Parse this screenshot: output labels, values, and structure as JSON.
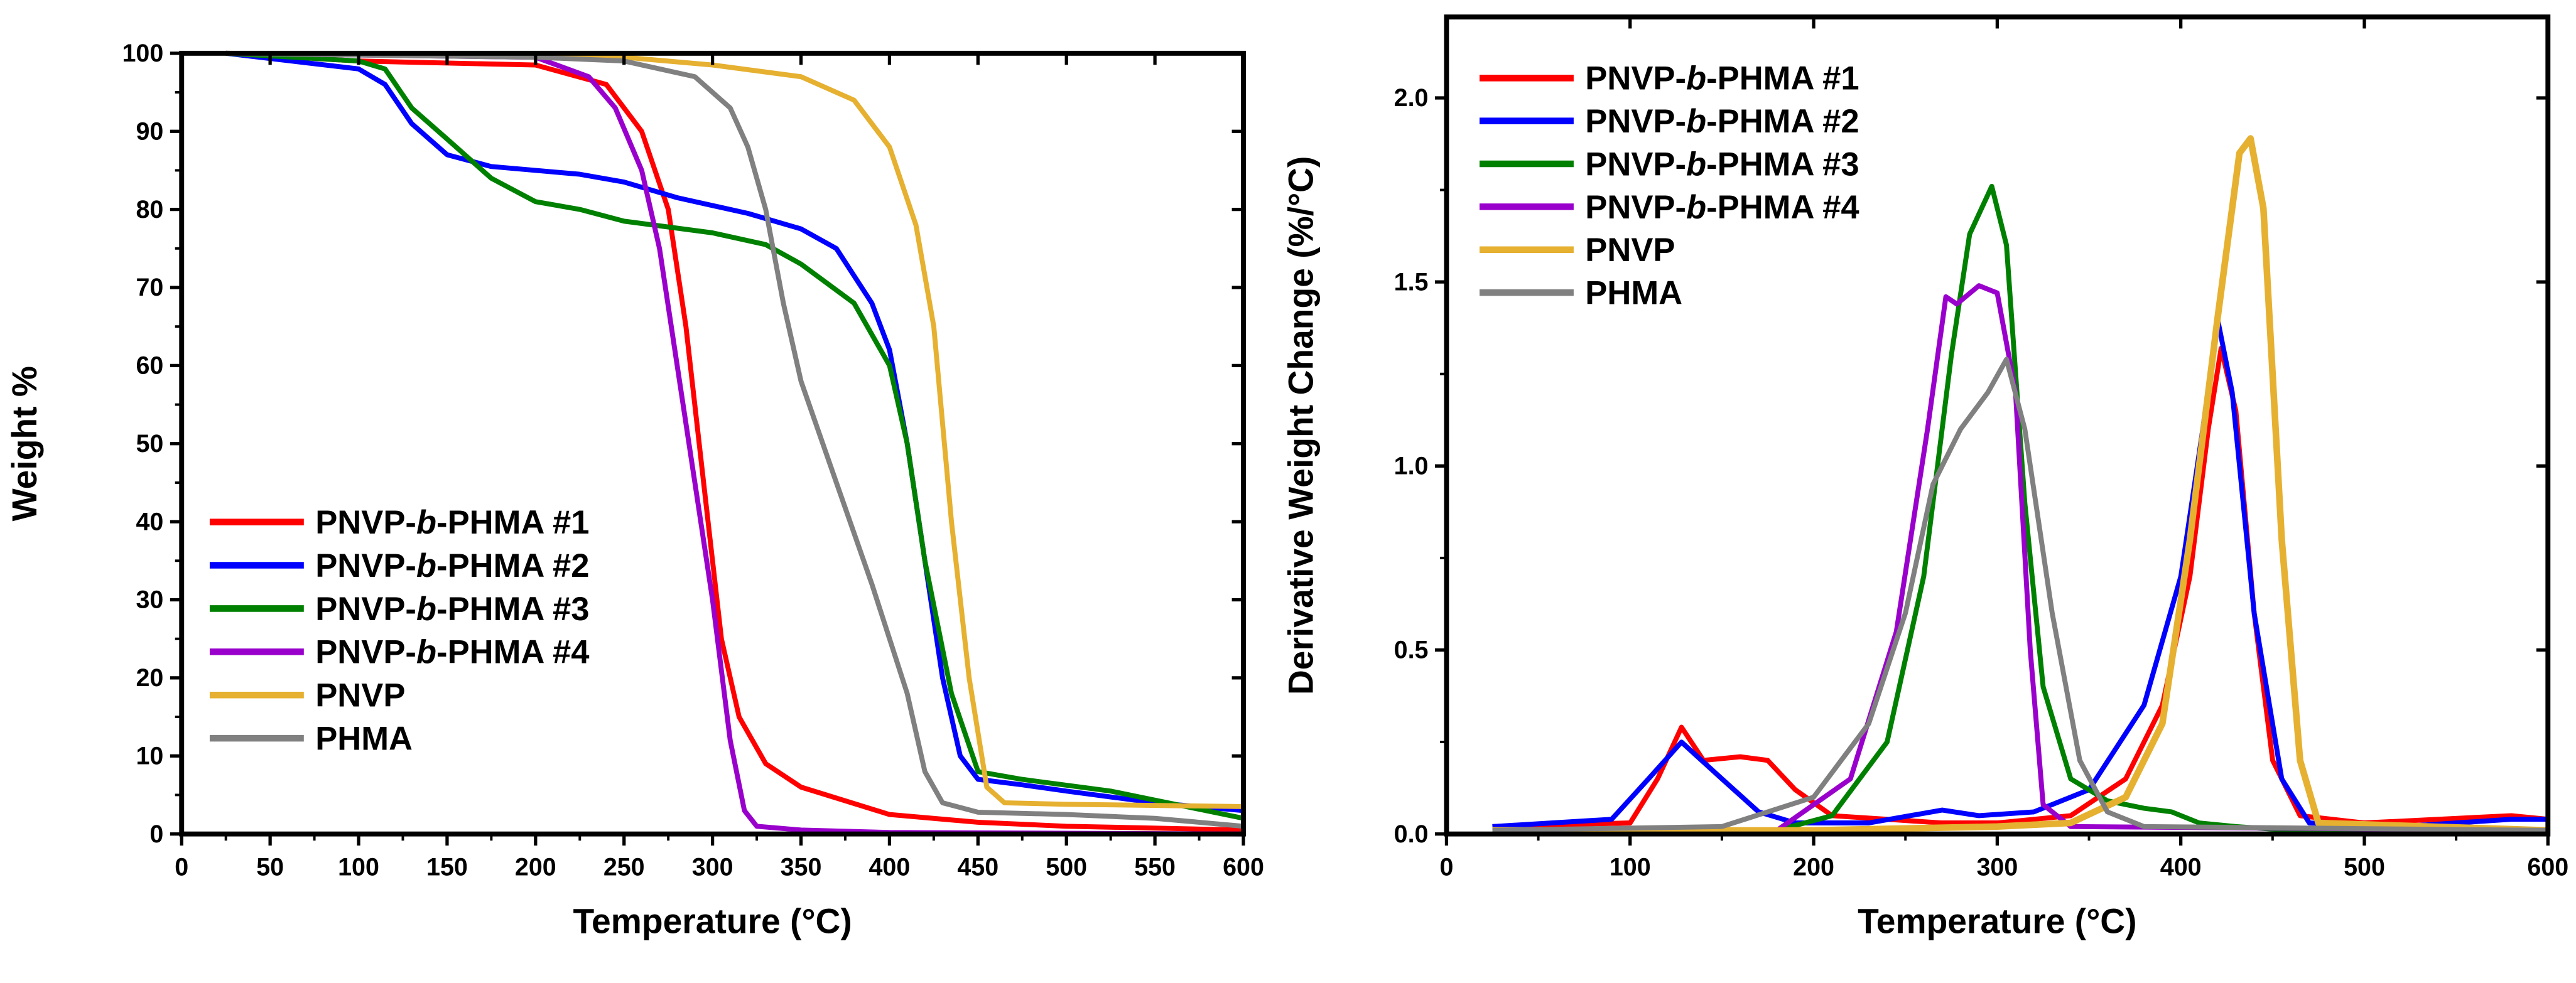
{
  "chart_data": [
    {
      "type": "line",
      "xlabel": "Temperature (°C)",
      "ylabel": "Weight %",
      "xlim": [
        0,
        600
      ],
      "ylim": [
        0,
        100
      ],
      "xticks": [
        0,
        50,
        100,
        150,
        200,
        250,
        300,
        350,
        400,
        450,
        500,
        550,
        600
      ],
      "yticks": [
        0,
        10,
        20,
        30,
        40,
        50,
        60,
        70,
        80,
        90,
        100
      ],
      "grid": false,
      "legend_position": "bottom-left",
      "series": [
        {
          "name": "PNVP-b-PHMA #1",
          "color": "#ff0000",
          "x": [
            25,
            100,
            200,
            240,
            260,
            275,
            285,
            295,
            305,
            315,
            330,
            350,
            400,
            450,
            500,
            600
          ],
          "y": [
            100,
            99,
            98.5,
            96,
            90,
            80,
            65,
            45,
            25,
            15,
            9,
            6,
            2.5,
            1.5,
            1,
            0.5
          ]
        },
        {
          "name": "PNVP-b-PHMA #2",
          "color": "#0000ff",
          "x": [
            25,
            100,
            115,
            130,
            150,
            175,
            225,
            250,
            280,
            320,
            350,
            370,
            390,
            400,
            410,
            420,
            430,
            440,
            450,
            475,
            500,
            550,
            600
          ],
          "y": [
            100,
            98,
            96,
            91,
            87,
            85.5,
            84.5,
            83.5,
            81.5,
            79.5,
            77.5,
            75,
            68,
            62,
            50,
            35,
            20,
            10,
            7,
            6.3,
            5.5,
            4,
            3
          ]
        },
        {
          "name": "PNVP-b-PHMA #3",
          "color": "#008000",
          "x": [
            25,
            100,
            115,
            130,
            150,
            175,
            200,
            225,
            250,
            300,
            330,
            350,
            380,
            400,
            410,
            420,
            435,
            450,
            475,
            525,
            600
          ],
          "y": [
            100,
            99,
            98,
            93,
            89,
            84,
            81,
            80,
            78.5,
            77,
            75.5,
            73,
            68,
            60,
            50,
            35,
            18,
            8,
            7,
            5.5,
            2
          ]
        },
        {
          "name": "PNVP-b-PHMA #4",
          "color": "#9900cc",
          "x": [
            25,
            200,
            230,
            245,
            260,
            270,
            280,
            290,
            300,
            310,
            318,
            325,
            350,
            400,
            600
          ],
          "y": [
            100,
            99.5,
            97,
            93,
            85,
            75,
            60,
            45,
            30,
            12,
            3,
            1,
            0.5,
            0.2,
            0
          ]
        },
        {
          "name": "PNVP",
          "color": "#e6b030",
          "x": [
            25,
            250,
            300,
            350,
            380,
            400,
            415,
            425,
            435,
            445,
            455,
            465,
            500,
            600
          ],
          "y": [
            100,
            99.5,
            98.5,
            97,
            94,
            88,
            78,
            65,
            40,
            20,
            6,
            4,
            3.8,
            3.5
          ]
        },
        {
          "name": "PHMA",
          "color": "#808080",
          "x": [
            25,
            200,
            250,
            290,
            310,
            320,
            330,
            340,
            350,
            370,
            390,
            410,
            420,
            430,
            450,
            500,
            550,
            600
          ],
          "y": [
            100,
            99.5,
            99,
            97,
            93,
            88,
            80,
            68,
            58,
            45,
            32,
            18,
            8,
            4,
            2.8,
            2.5,
            2,
            1
          ]
        }
      ]
    },
    {
      "type": "line",
      "xlabel": "Temperature (°C)",
      "ylabel": "Derivative Weight Change (%/°C)",
      "xlim": [
        0,
        600
      ],
      "ylim": [
        0,
        2.22
      ],
      "xticks": [
        0,
        100,
        200,
        300,
        400,
        500,
        600
      ],
      "yticks": [
        "0.0",
        "0.5",
        "1.0",
        "1.5",
        "2.0"
      ],
      "grid": false,
      "legend_position": "top-left",
      "series": [
        {
          "name": "PNVP-b-PHMA #1",
          "color": "#ff0000",
          "x": [
            25,
            100,
            115,
            128,
            140,
            160,
            175,
            190,
            210,
            240,
            270,
            300,
            340,
            370,
            390,
            405,
            415,
            422,
            430,
            440,
            450,
            465,
            500,
            580,
            600
          ],
          "y": [
            0.02,
            0.03,
            0.15,
            0.29,
            0.2,
            0.21,
            0.2,
            0.12,
            0.05,
            0.04,
            0.03,
            0.03,
            0.05,
            0.15,
            0.35,
            0.7,
            1.1,
            1.32,
            1.15,
            0.6,
            0.2,
            0.05,
            0.03,
            0.05,
            0.04
          ]
        },
        {
          "name": "PNVP-b-PHMA #2",
          "color": "#0000ff",
          "x": [
            25,
            90,
            110,
            128,
            150,
            170,
            190,
            230,
            270,
            290,
            320,
            350,
            380,
            400,
            412,
            420,
            428,
            440,
            455,
            470,
            520,
            580,
            600
          ],
          "y": [
            0.02,
            0.04,
            0.15,
            0.25,
            0.15,
            0.06,
            0.03,
            0.03,
            0.065,
            0.05,
            0.06,
            0.12,
            0.35,
            0.7,
            1.1,
            1.4,
            1.2,
            0.6,
            0.15,
            0.03,
            0.02,
            0.04,
            0.04
          ]
        },
        {
          "name": "PNVP-b-PHMA #3",
          "color": "#008000",
          "x": [
            25,
            180,
            210,
            240,
            260,
            275,
            285,
            297,
            305,
            315,
            325,
            340,
            360,
            380,
            395,
            410,
            430,
            460,
            600
          ],
          "y": [
            0.01,
            0.01,
            0.05,
            0.25,
            0.7,
            1.3,
            1.63,
            1.76,
            1.6,
            0.9,
            0.4,
            0.15,
            0.09,
            0.07,
            0.06,
            0.03,
            0.02,
            0.01,
            0.01
          ]
        },
        {
          "name": "PNVP-b-PHMA #4",
          "color": "#9900cc",
          "x": [
            25,
            180,
            220,
            245,
            262,
            272,
            278,
            290,
            300,
            310,
            318,
            325,
            340,
            600
          ],
          "y": [
            0.01,
            0.01,
            0.15,
            0.55,
            1.1,
            1.46,
            1.44,
            1.49,
            1.47,
            1.2,
            0.5,
            0.08,
            0.02,
            0.01
          ]
        },
        {
          "name": "PNVP",
          "color": "#e6b030",
          "x": [
            25,
            200,
            300,
            340,
            370,
            390,
            405,
            420,
            432,
            438,
            445,
            455,
            465,
            475,
            600
          ],
          "y": [
            0.01,
            0.01,
            0.02,
            0.03,
            0.1,
            0.3,
            0.8,
            1.4,
            1.85,
            1.89,
            1.7,
            0.8,
            0.2,
            0.03,
            0.01
          ]
        },
        {
          "name": "PHMA",
          "color": "#808080",
          "x": [
            25,
            150,
            200,
            230,
            250,
            265,
            280,
            295,
            305,
            315,
            330,
            345,
            360,
            380,
            600
          ],
          "y": [
            0.01,
            0.02,
            0.1,
            0.3,
            0.6,
            0.95,
            1.1,
            1.2,
            1.29,
            1.1,
            0.6,
            0.2,
            0.06,
            0.02,
            0.01
          ]
        }
      ]
    }
  ]
}
